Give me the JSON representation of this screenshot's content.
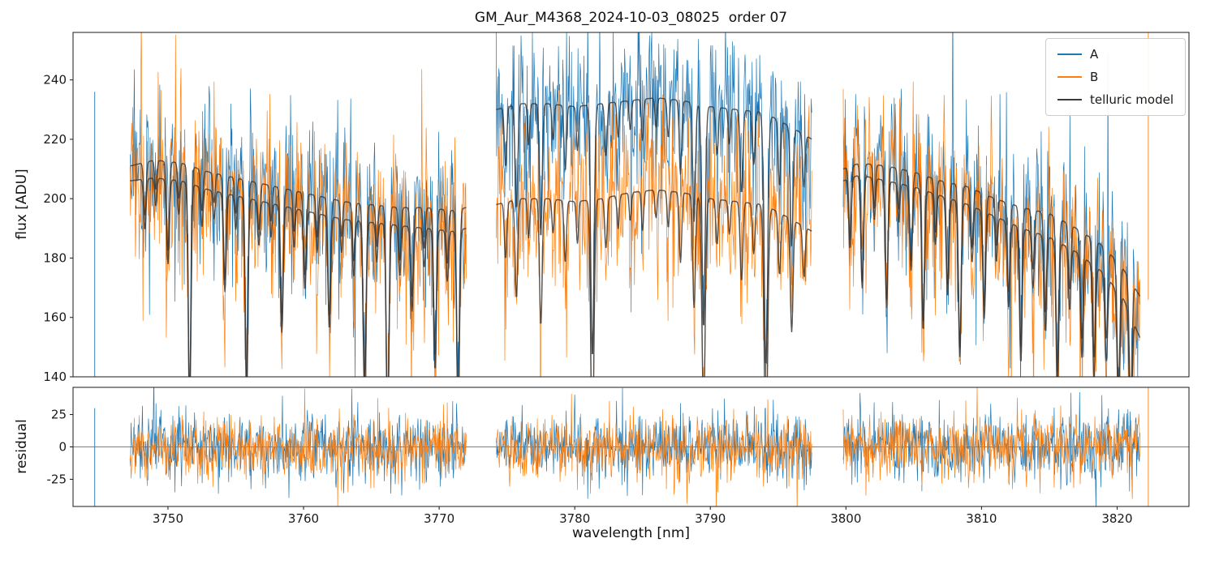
{
  "chart_data": {
    "type": "line",
    "title": "GM_Aur_M4368_2024-10-03_08025  order 07",
    "xlabel": "wavelength [nm]",
    "xlim": [
      3743.0,
      3825.3
    ],
    "xticks": [
      3750,
      3760,
      3770,
      3780,
      3790,
      3800,
      3810,
      3820
    ],
    "top_panel": {
      "ylabel": "flux [ADU]",
      "ylim": [
        140,
        256
      ],
      "yticks": [
        140,
        160,
        180,
        200,
        220,
        240
      ]
    },
    "bottom_panel": {
      "ylabel": "residual",
      "ylim": [
        -46,
        46
      ],
      "yticks": [
        -25,
        0,
        25
      ],
      "zero_line": true
    },
    "legend": [
      {
        "label": "A",
        "color": "#1f77b4"
      },
      {
        "label": "B",
        "color": "#ff7f0e"
      },
      {
        "label": "telluric model",
        "color": "#3a3a3a"
      }
    ],
    "noise_sigma": {
      "A": 13,
      "B": 14,
      "residual": 13
    },
    "segments": [
      {
        "x_start": 3747.2,
        "x_end": 3772.0,
        "continuum_A": [
          [
            3747.2,
            211
          ],
          [
            3749,
            213
          ],
          [
            3751,
            212
          ],
          [
            3753,
            209
          ],
          [
            3755,
            207
          ],
          [
            3757,
            205
          ],
          [
            3759,
            203
          ],
          [
            3761,
            201
          ],
          [
            3763,
            199
          ],
          [
            3765,
            198
          ],
          [
            3767,
            197
          ],
          [
            3769,
            197
          ],
          [
            3771,
            196
          ],
          [
            3772,
            197
          ]
        ],
        "continuum_B": [
          [
            3747.2,
            206
          ],
          [
            3749,
            207
          ],
          [
            3751,
            206
          ],
          [
            3753,
            203
          ],
          [
            3755,
            201
          ],
          [
            3757,
            199
          ],
          [
            3759,
            197
          ],
          [
            3761,
            195
          ],
          [
            3763,
            193
          ],
          [
            3765,
            192
          ],
          [
            3767,
            191
          ],
          [
            3769,
            190
          ],
          [
            3771,
            189
          ],
          [
            3772,
            190
          ]
        ],
        "telluric_lines": [
          [
            3748.3,
            18,
            0.09
          ],
          [
            3749.1,
            10,
            0.08
          ],
          [
            3750.0,
            30,
            0.1
          ],
          [
            3750.8,
            12,
            0.08
          ],
          [
            3751.6,
            80,
            0.1
          ],
          [
            3752.5,
            14,
            0.09
          ],
          [
            3753.4,
            10,
            0.08
          ],
          [
            3754.2,
            35,
            0.1
          ],
          [
            3755.0,
            12,
            0.08
          ],
          [
            3755.8,
            70,
            0.1
          ],
          [
            3756.7,
            16,
            0.09
          ],
          [
            3757.6,
            12,
            0.08
          ],
          [
            3758.4,
            45,
            0.1
          ],
          [
            3759.3,
            14,
            0.08
          ],
          [
            3760.1,
            28,
            0.1
          ],
          [
            3761.0,
            14,
            0.08
          ],
          [
            3761.9,
            40,
            0.1
          ],
          [
            3762.8,
            12,
            0.08
          ],
          [
            3763.7,
            20,
            0.09
          ],
          [
            3764.5,
            60,
            0.11
          ],
          [
            3765.4,
            14,
            0.08
          ],
          [
            3766.2,
            75,
            0.1
          ],
          [
            3767.1,
            18,
            0.09
          ],
          [
            3768.0,
            30,
            0.1
          ],
          [
            3768.9,
            14,
            0.08
          ],
          [
            3769.7,
            50,
            0.1
          ],
          [
            3770.6,
            18,
            0.09
          ],
          [
            3771.4,
            65,
            0.1
          ]
        ]
      },
      {
        "x_start": 3774.2,
        "x_end": 3797.5,
        "continuum_A": [
          [
            3774.2,
            230
          ],
          [
            3776,
            232
          ],
          [
            3778,
            232
          ],
          [
            3780,
            231
          ],
          [
            3782,
            232
          ],
          [
            3784,
            233
          ],
          [
            3786,
            234
          ],
          [
            3788,
            233
          ],
          [
            3790,
            231
          ],
          [
            3792,
            230
          ],
          [
            3794,
            229
          ],
          [
            3796,
            224
          ],
          [
            3797.5,
            220
          ]
        ],
        "continuum_B": [
          [
            3774.2,
            198
          ],
          [
            3776,
            200
          ],
          [
            3778,
            200
          ],
          [
            3780,
            199
          ],
          [
            3782,
            200
          ],
          [
            3784,
            202
          ],
          [
            3786,
            203
          ],
          [
            3788,
            202
          ],
          [
            3790,
            200
          ],
          [
            3792,
            199
          ],
          [
            3794,
            198
          ],
          [
            3796,
            193
          ],
          [
            3797.5,
            189
          ]
        ],
        "telluric_lines": [
          [
            3774.9,
            20,
            0.09
          ],
          [
            3775.7,
            35,
            0.1
          ],
          [
            3776.6,
            14,
            0.08
          ],
          [
            3777.5,
            45,
            0.1
          ],
          [
            3778.4,
            12,
            0.08
          ],
          [
            3779.3,
            22,
            0.09
          ],
          [
            3780.2,
            15,
            0.08
          ],
          [
            3781.3,
            85,
            0.12
          ],
          [
            3782.3,
            18,
            0.09
          ],
          [
            3783.2,
            12,
            0.08
          ],
          [
            3784.1,
            10,
            0.08
          ],
          [
            3785.0,
            14,
            0.08
          ],
          [
            3786.0,
            10,
            0.08
          ],
          [
            3786.9,
            13,
            0.08
          ],
          [
            3787.8,
            25,
            0.09
          ],
          [
            3788.8,
            40,
            0.1
          ],
          [
            3789.5,
            75,
            0.12
          ],
          [
            3790.5,
            16,
            0.09
          ],
          [
            3791.4,
            12,
            0.08
          ],
          [
            3792.3,
            28,
            0.1
          ],
          [
            3793.2,
            18,
            0.09
          ],
          [
            3794.1,
            85,
            0.13
          ],
          [
            3795.1,
            22,
            0.09
          ],
          [
            3796.0,
            40,
            0.1
          ],
          [
            3796.9,
            18,
            0.09
          ]
        ]
      },
      {
        "x_start": 3799.8,
        "x_end": 3821.7,
        "continuum_A": [
          [
            3799.8,
            210
          ],
          [
            3801,
            212
          ],
          [
            3803,
            211
          ],
          [
            3805,
            209
          ],
          [
            3807,
            206
          ],
          [
            3809,
            204
          ],
          [
            3811,
            200
          ],
          [
            3813,
            197
          ],
          [
            3815,
            195
          ],
          [
            3817,
            190
          ],
          [
            3819,
            184
          ],
          [
            3820.5,
            176
          ],
          [
            3821.7,
            167
          ]
        ],
        "continuum_B": [
          [
            3799.8,
            206
          ],
          [
            3801,
            208
          ],
          [
            3803,
            206
          ],
          [
            3805,
            204
          ],
          [
            3807,
            201
          ],
          [
            3809,
            198
          ],
          [
            3811,
            194
          ],
          [
            3813,
            190
          ],
          [
            3815,
            187
          ],
          [
            3817,
            182
          ],
          [
            3819,
            175
          ],
          [
            3820.5,
            166
          ],
          [
            3821.7,
            153
          ]
        ],
        "telluric_lines": [
          [
            3800.3,
            25,
            0.09
          ],
          [
            3801.2,
            40,
            0.1
          ],
          [
            3802.1,
            15,
            0.08
          ],
          [
            3803.0,
            45,
            0.1
          ],
          [
            3803.9,
            14,
            0.08
          ],
          [
            3804.8,
            30,
            0.1
          ],
          [
            3805.7,
            50,
            0.1
          ],
          [
            3806.6,
            18,
            0.09
          ],
          [
            3807.5,
            35,
            0.1
          ],
          [
            3808.4,
            55,
            0.1
          ],
          [
            3809.3,
            20,
            0.09
          ],
          [
            3810.2,
            38,
            0.1
          ],
          [
            3811.1,
            16,
            0.08
          ],
          [
            3812.0,
            30,
            0.1
          ],
          [
            3812.9,
            48,
            0.1
          ],
          [
            3813.8,
            20,
            0.09
          ],
          [
            3814.7,
            34,
            0.1
          ],
          [
            3815.6,
            52,
            0.1
          ],
          [
            3816.5,
            22,
            0.09
          ],
          [
            3817.4,
            36,
            0.1
          ],
          [
            3818.3,
            40,
            0.1
          ],
          [
            3819.2,
            30,
            0.1
          ],
          [
            3820.1,
            42,
            0.1
          ],
          [
            3821.0,
            45,
            0.1
          ]
        ]
      }
    ],
    "edge_artifacts": [
      {
        "x": 3744.6,
        "series": "A",
        "flux": [
          236,
          128
        ],
        "residual": [
          30,
          -60
        ]
      },
      {
        "x": 3822.3,
        "series": "B",
        "flux": [
          256,
          166
        ],
        "residual": [
          46,
          -55
        ]
      }
    ]
  }
}
